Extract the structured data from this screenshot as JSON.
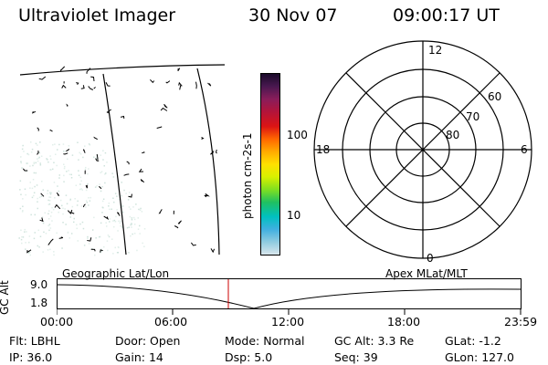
{
  "header": {
    "title": "Ultraviolet Imager",
    "date": "30 Nov 07",
    "time": "09:00:17 UT"
  },
  "colorbar": {
    "unit_label": "photon cm-2s-1",
    "ticks": [
      "100",
      "10"
    ],
    "colors": [
      "#1a0a2a",
      "#4a1850",
      "#8a1d5a",
      "#b3143a",
      "#dc1414",
      "#ff6600",
      "#ffaa00",
      "#ffe000",
      "#d8f000",
      "#80e020",
      "#20c060",
      "#00c0c0",
      "#40b0e0",
      "#8fcbe0",
      "#d8e6ec"
    ]
  },
  "polar": {
    "lat_labels": [
      "60",
      "70",
      "80"
    ],
    "mlt_labels": {
      "top": "12",
      "bottom": "0",
      "left": "18",
      "right": "6"
    }
  },
  "timeline": {
    "axis_title": "GC Alt",
    "yticks": [
      "9.0",
      "1.8"
    ],
    "left_label": "Geographic Lat/Lon",
    "right_label": "Apex  MLat/MLT",
    "xticks": [
      "00:00",
      "06:00",
      "12:00",
      "18:00",
      "23:59"
    ]
  },
  "status": {
    "row1": [
      {
        "label": "Flt:",
        "value": "LBHL"
      },
      {
        "label": "Door:",
        "value": "Open"
      },
      {
        "label": "Mode:",
        "value": "Normal"
      },
      {
        "label": "GC Alt:",
        "value": "3.3 Re"
      },
      {
        "label": "GLat:",
        "value": "-1.2"
      }
    ],
    "row2": [
      {
        "label": "IP:",
        "value": "36.0"
      },
      {
        "label": "Gain:",
        "value": "14"
      },
      {
        "label": "Dsp:",
        "value": "5.0"
      },
      {
        "label": "Seq:",
        "value": "39"
      },
      {
        "label": "GLon:",
        "value": "127.0"
      }
    ]
  }
}
